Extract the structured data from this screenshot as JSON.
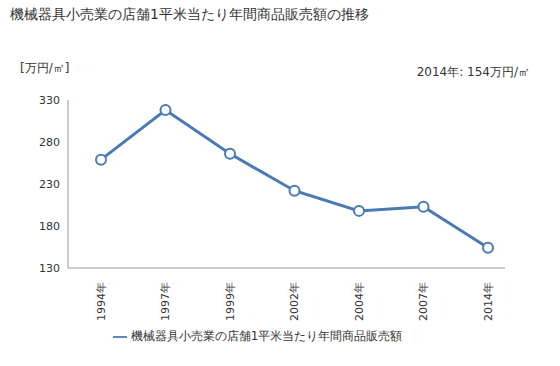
{
  "chart_data": {
    "type": "line",
    "title": "機械器具小売業の店舗1平米当たり年間商品販売額の推移",
    "y_label": "[万円/㎡]",
    "annotation": "2014年: 154万円/㎡",
    "categories": [
      "1994年",
      "1997年",
      "1999年",
      "2002年",
      "2004年",
      "2007年",
      "2014年"
    ],
    "series": [
      {
        "name": "機械器具小売業の店舗1平米当たり年間商品販売額",
        "color": "#4a7ab5",
        "marker": "circle",
        "values": [
          259,
          318,
          266,
          222,
          198,
          203,
          154
        ]
      }
    ],
    "ylim": [
      130,
      330
    ],
    "yticks": [
      130,
      180,
      230,
      280,
      330
    ],
    "grid": false,
    "legend": "bottom"
  }
}
